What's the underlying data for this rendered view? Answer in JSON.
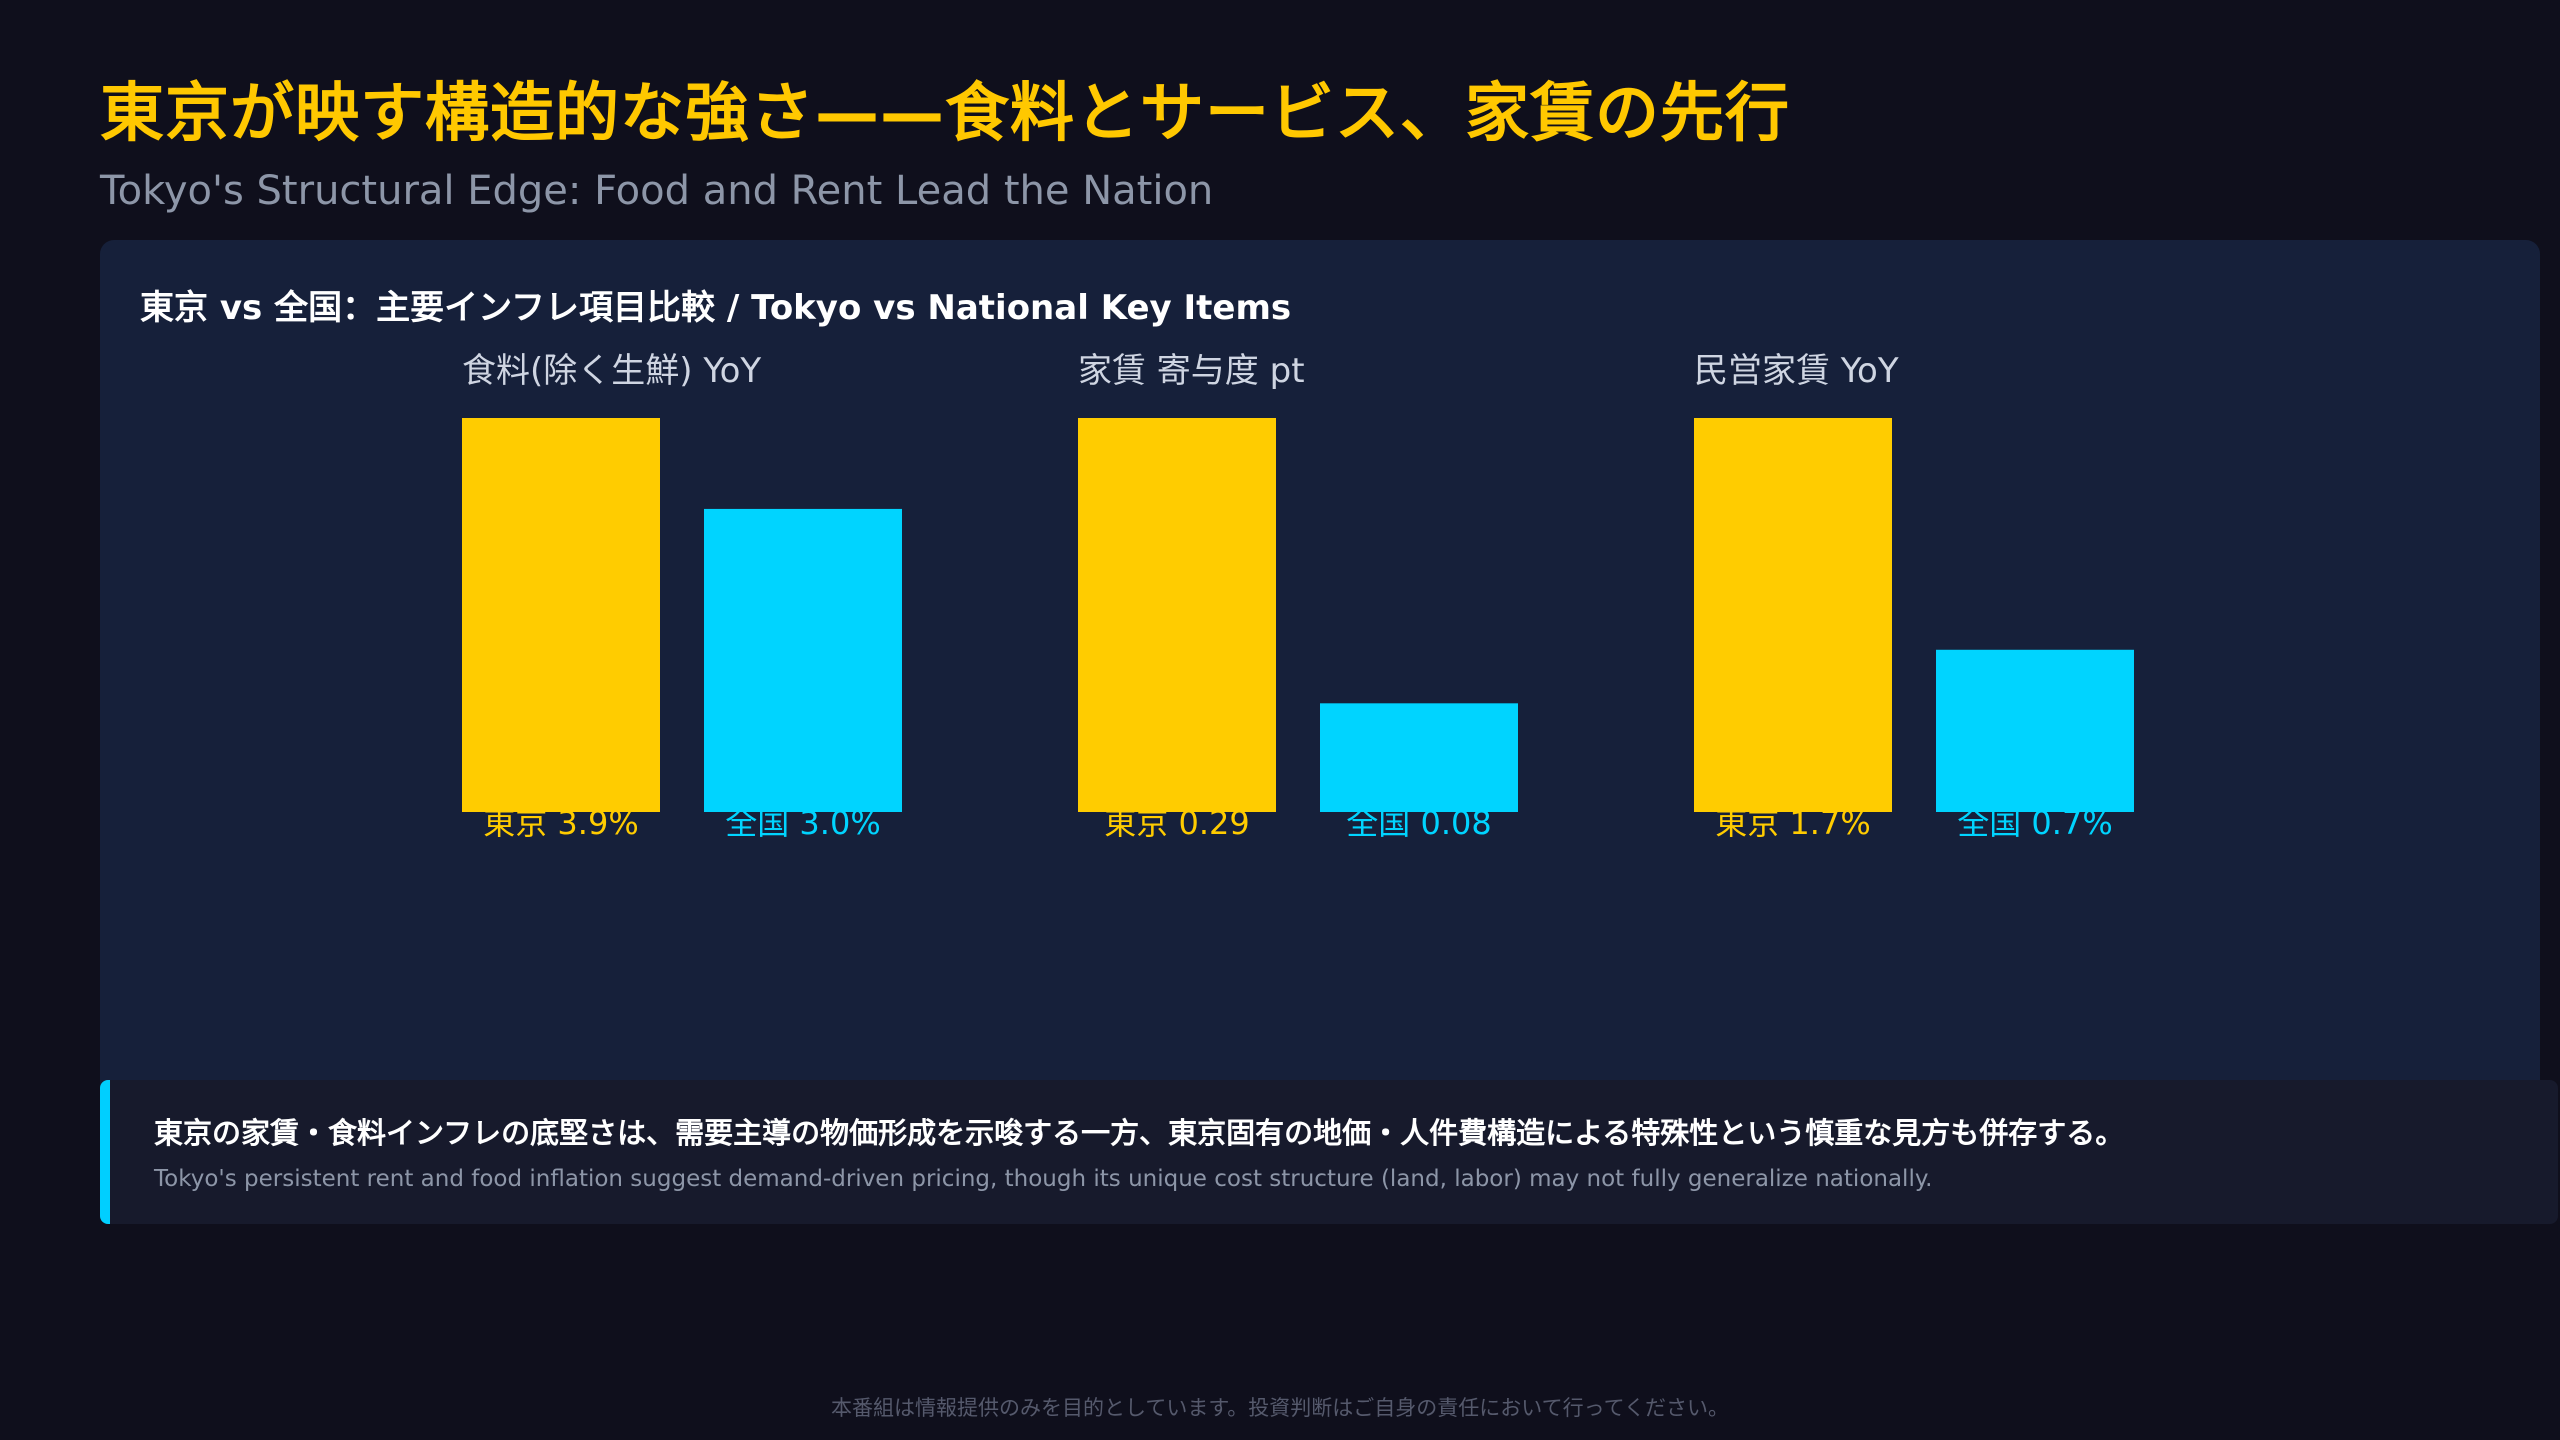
{
  "header": {
    "title": "東京が映す構造的な強さ——食料とサービス、家賃の先行",
    "subtitle": "Tokyo's Structural Edge: Food and Rent Lead the Nation"
  },
  "panel": {
    "title": "東京 vs 全国：主要インフレ項目比較 / Tokyo vs National Key Items"
  },
  "colors": {
    "tokyo": "#ffcc00",
    "national": "#00d4ff",
    "background": "#0f0f1c",
    "panel": "#16203a"
  },
  "chart_data": [
    {
      "type": "bar",
      "title": "食料(除く生鮮) YoY",
      "categories": [
        "東京",
        "全国"
      ],
      "values": [
        3.9,
        3.0
      ],
      "unit": "%",
      "labels": [
        "東京 3.9%",
        "全国 3.0%"
      ]
    },
    {
      "type": "bar",
      "title": "家賃 寄与度 pt",
      "categories": [
        "東京",
        "全国"
      ],
      "values": [
        0.29,
        0.08
      ],
      "unit": "pt",
      "labels": [
        "東京 0.29",
        "全国 0.08"
      ]
    },
    {
      "type": "bar",
      "title": "民営家賃 YoY",
      "categories": [
        "東京",
        "全国"
      ],
      "values": [
        1.7,
        0.7
      ],
      "unit": "%",
      "labels": [
        "東京 1.7%",
        "全国 0.7%"
      ]
    }
  ],
  "insight": {
    "jp": "東京の家賃・食料インフレの底堅さは、需要主導の物価形成を示唆する一方、東京固有の地価・人件費構造による特殊性という慎重な見方も併存する。",
    "en": "Tokyo's persistent rent and food inflation suggest demand-driven pricing, though its unique cost structure (land, labor) may not fully generalize nationally."
  },
  "footer": {
    "disclaimer": "本番組は情報提供のみを目的としています。投資判断はご自身の責任において行ってください。"
  }
}
